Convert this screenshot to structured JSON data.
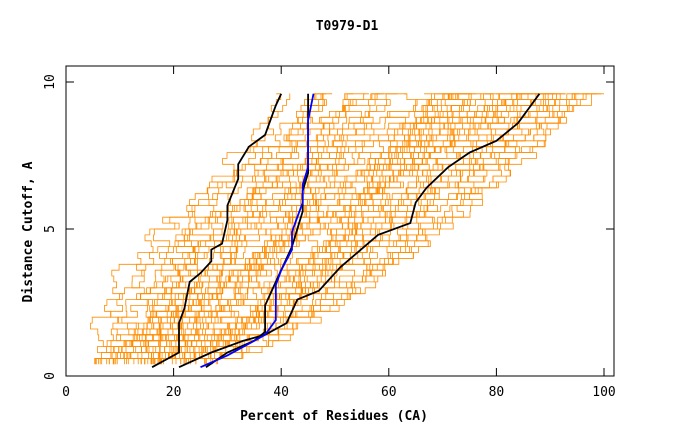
{
  "chart_data": {
    "type": "line",
    "title": "T0979-D1",
    "xlabel": "Percent of Residues (CA)",
    "ylabel": "Distance Cutoff, A",
    "xlim": [
      0,
      100
    ],
    "ylim": [
      0,
      10
    ],
    "x_ticks": [
      "0",
      "20",
      "40",
      "60",
      "80",
      "100"
    ],
    "y_ticks": [
      "0",
      "5",
      "10"
    ],
    "grid": false,
    "colors": {
      "background_curves": "#ff8c00",
      "highlight_black": "#000000",
      "highlight_blue": "#0000ff"
    },
    "background_curve_count": 60,
    "highlight_series": [
      {
        "color": "#000000",
        "points": [
          [
            16,
            0.3
          ],
          [
            21,
            0.8
          ],
          [
            21,
            1.8
          ],
          [
            22,
            2.3
          ],
          [
            23,
            3.2
          ],
          [
            25,
            3.5
          ],
          [
            27,
            3.9
          ],
          [
            27,
            4.3
          ],
          [
            29,
            4.5
          ],
          [
            30,
            5.3
          ],
          [
            30,
            5.8
          ],
          [
            32,
            6.7
          ],
          [
            32,
            7.2
          ],
          [
            34,
            7.8
          ],
          [
            37,
            8.2
          ],
          [
            38,
            8.7
          ],
          [
            39,
            9.2
          ],
          [
            40,
            9.6
          ]
        ]
      },
      {
        "color": "#000000",
        "points": [
          [
            21,
            0.3
          ],
          [
            27,
            0.8
          ],
          [
            33,
            1.2
          ],
          [
            37,
            1.4
          ],
          [
            41,
            1.8
          ],
          [
            43,
            2.6
          ],
          [
            47,
            2.9
          ],
          [
            51,
            3.7
          ],
          [
            58,
            4.8
          ],
          [
            64,
            5.2
          ],
          [
            65,
            5.9
          ],
          [
            67,
            6.4
          ],
          [
            71,
            7.1
          ],
          [
            75,
            7.6
          ],
          [
            80,
            8.0
          ],
          [
            84,
            8.6
          ],
          [
            86,
            9.1
          ],
          [
            88,
            9.6
          ]
        ]
      },
      {
        "color": "#000000",
        "points": [
          [
            26,
            0.3
          ],
          [
            30,
            0.8
          ],
          [
            35,
            1.2
          ],
          [
            37,
            1.5
          ],
          [
            37,
            2.0
          ],
          [
            37,
            2.4
          ],
          [
            38,
            2.8
          ],
          [
            39,
            3.2
          ],
          [
            41,
            4.0
          ],
          [
            42,
            4.4
          ],
          [
            43,
            5.0
          ],
          [
            44,
            5.6
          ],
          [
            44,
            6.3
          ],
          [
            45,
            6.9
          ],
          [
            45,
            7.8
          ],
          [
            45,
            8.6
          ],
          [
            45,
            9.6
          ]
        ]
      },
      {
        "color": "#0000ff",
        "points": [
          [
            25,
            0.3
          ],
          [
            30,
            0.7
          ],
          [
            34,
            1.1
          ],
          [
            37,
            1.4
          ],
          [
            39,
            1.9
          ],
          [
            39,
            2.5
          ],
          [
            39,
            3.1
          ],
          [
            40,
            3.6
          ],
          [
            42,
            4.3
          ],
          [
            42,
            4.9
          ],
          [
            43,
            5.4
          ],
          [
            44,
            5.9
          ],
          [
            44,
            6.5
          ],
          [
            45,
            7.1
          ],
          [
            45,
            7.9
          ],
          [
            45,
            8.7
          ],
          [
            46,
            9.6
          ]
        ]
      }
    ]
  }
}
